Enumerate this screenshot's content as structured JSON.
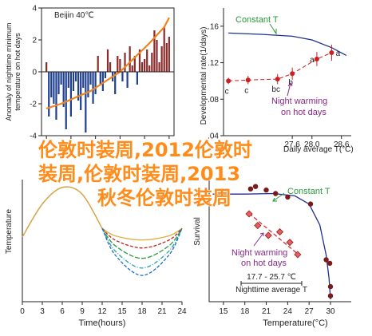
{
  "overlay_text": [
    "伦敦时装周,2012伦敦时",
    "装周,伦敦时装周,2013",
    "秋冬伦敦时装周"
  ],
  "colors": {
    "bars": "#8b2a2a",
    "bars_neg": "#1f3f8f",
    "orange": "#f0841e",
    "navy": "#1f2f8f",
    "red": "#cc1f1f",
    "green": "#2a9a3a",
    "purple": "#8a2a8a"
  },
  "chart_data": [
    {
      "type": "bar",
      "panel": "top-left",
      "title": "Beijin 40℃",
      "ylabel": "Anomaly of nighttime minimum temperature on hot days",
      "ylim": [
        -4,
        4
      ],
      "yticks": [
        "4",
        "2",
        "0",
        "-2",
        "-4"
      ],
      "xticks": [
        "1960",
        "1970",
        "1980",
        "1990",
        "2000",
        "2010"
      ],
      "x": [
        1960,
        1961,
        1962,
        1963,
        1964,
        1965,
        1966,
        1967,
        1968,
        1969,
        1970,
        1971,
        1972,
        1973,
        1974,
        1975,
        1976,
        1977,
        1978,
        1979,
        1980,
        1981,
        1982,
        1983,
        1984,
        1985,
        1986,
        1987,
        1988,
        1989,
        1990,
        1991,
        1992,
        1993,
        1994,
        1995,
        1996,
        1997,
        1998,
        1999,
        2000,
        2001,
        2002,
        2003,
        2004,
        2005,
        2006,
        2007,
        2008,
        2009,
        2010
      ],
      "values": [
        0.6,
        -2.8,
        -1.6,
        -2.0,
        -3.0,
        -1.4,
        -0.8,
        -2.2,
        -3.6,
        -1.0,
        -2.8,
        -1.2,
        -0.6,
        -1.8,
        -2.4,
        -1.0,
        -3.8,
        -1.6,
        -0.8,
        -2.0,
        -1.4,
        1.0,
        -0.8,
        -1.2,
        -0.4,
        1.4,
        0.6,
        -0.6,
        -1.4,
        1.0,
        0.8,
        -0.6,
        1.2,
        -1.0,
        1.6,
        0.4,
        1.0,
        -0.8,
        1.4,
        0.6,
        0.8,
        1.4,
        0.4,
        1.2,
        2.6,
        2.0,
        0.6,
        1.6,
        2.8,
        1.8,
        2.2
      ],
      "trend": [
        [
          1960,
          -2.3
        ],
        [
          1966,
          -2.0
        ],
        [
          1972,
          -1.6
        ],
        [
          1978,
          -1.2
        ],
        [
          1984,
          -0.6
        ],
        [
          1990,
          0.0
        ],
        [
          1996,
          0.9
        ],
        [
          2002,
          1.8
        ],
        [
          2008,
          2.8
        ],
        [
          2010,
          3.4
        ]
      ]
    },
    {
      "type": "scatter",
      "panel": "top-right",
      "xlabel": "Daily average T(°C)",
      "ylabel": "Developmental rate(1/days)",
      "xlim": [
        26.2,
        28.8
      ],
      "ylim": [
        0.04,
        0.18
      ],
      "yticks": [
        0.16,
        0.12,
        0.08,
        0.04
      ],
      "xticks": [
        "27.6",
        "28.0",
        "28.6"
      ],
      "annotations": {
        "constant": "Constant T",
        "night": [
          "Night warming",
          "on hot days"
        ]
      },
      "constant_curve": [
        [
          26.3,
          0.1525
        ],
        [
          27.0,
          0.151
        ],
        [
          27.6,
          0.149
        ],
        [
          28.0,
          0.145
        ],
        [
          28.4,
          0.1365
        ],
        [
          28.7,
          0.128
        ]
      ],
      "points": [
        {
          "x": 26.3,
          "y": 0.1,
          "label": "c"
        },
        {
          "x": 26.7,
          "y": 0.101,
          "label": "c"
        },
        {
          "x": 27.3,
          "y": 0.102,
          "label": "bc"
        },
        {
          "x": 27.6,
          "y": 0.108,
          "label": "b"
        },
        {
          "x": 28.1,
          "y": 0.124,
          "label": "a"
        },
        {
          "x": 28.4,
          "y": 0.131,
          "label": "a"
        }
      ]
    },
    {
      "type": "line",
      "panel": "bottom-left",
      "xlabel": "Time(hours)",
      "ylabel": "Temperature",
      "xlim": [
        0,
        24
      ],
      "xticks": [
        "0",
        "3",
        "6",
        "9",
        "12",
        "15",
        "18",
        "21",
        "24"
      ],
      "series_colors": [
        "#e0b040",
        "#c02020",
        "#2a9a3a",
        "#2aa0b0",
        "#1f6fbf"
      ],
      "day_curve": [
        [
          0,
          0.53
        ],
        [
          3,
          0.8
        ],
        [
          6,
          0.935
        ],
        [
          9,
          0.88
        ],
        [
          12,
          0.6
        ]
      ],
      "night_minima": [
        0.505,
        0.44,
        0.355,
        0.275,
        0.215
      ]
    },
    {
      "type": "scatter",
      "panel": "bottom-right",
      "xlabel": "Temperature(°C)",
      "ylabel": "Survival",
      "xlim": [
        13,
        30
      ],
      "xticks": [
        "15",
        "18",
        "21",
        "24",
        "27",
        "30"
      ],
      "annotations": {
        "constant": "Constant T",
        "night": [
          "Night warming",
          "on hot days"
        ],
        "range": "17.7 - 25.7 ℃",
        "nighttime": "Nighttime average T"
      },
      "constant_points": [
        [
          18.8,
          0.97
        ],
        [
          19.5,
          0.99
        ],
        [
          21.0,
          0.96
        ],
        [
          22.3,
          0.93
        ],
        [
          24.0,
          0.9
        ],
        [
          27.2,
          0.84
        ],
        [
          29.4,
          0.36
        ],
        [
          29.9,
          0.33
        ],
        [
          30.0,
          0.13
        ],
        [
          30.0,
          0.05
        ]
      ],
      "constant_curve": [
        [
          13.5,
          0.925
        ],
        [
          18,
          0.925
        ],
        [
          22,
          0.93
        ],
        [
          25,
          0.91
        ],
        [
          27,
          0.84
        ],
        [
          28.5,
          0.66
        ],
        [
          29.4,
          0.4
        ],
        [
          29.8,
          0.2
        ],
        [
          30,
          0.02
        ]
      ],
      "night_points": [
        [
          18.6,
          0.755
        ],
        [
          19.8,
          0.655
        ],
        [
          21.3,
          0.57
        ],
        [
          22.9,
          0.6
        ],
        [
          24.3,
          0.51
        ],
        [
          25.4,
          0.405
        ]
      ],
      "night_trend": [
        [
          18.6,
          0.76
        ],
        [
          25.6,
          0.4
        ]
      ]
    }
  ]
}
